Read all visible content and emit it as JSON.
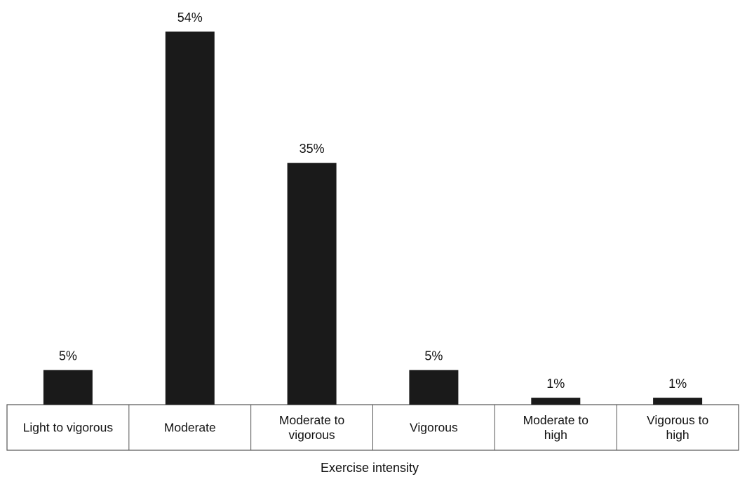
{
  "chart_data": {
    "type": "bar",
    "categories": [
      [
        "Light to vigorous"
      ],
      [
        "Moderate"
      ],
      [
        "Moderate to",
        "vigorous"
      ],
      [
        "Vigorous"
      ],
      [
        "Moderate to",
        "high"
      ],
      [
        "Vigorous to",
        "high"
      ]
    ],
    "values": [
      5,
      54,
      35,
      5,
      1,
      1
    ],
    "data_labels": [
      "5%",
      "54%",
      "35%",
      "5%",
      "1%",
      "1%"
    ],
    "title": "",
    "xlabel": "Exercise intensity",
    "ylabel": "",
    "ylim": [
      0,
      54
    ],
    "grid": false,
    "legend": "none",
    "bar_color": "#1a1a1a",
    "table_border_color": "#555555"
  }
}
